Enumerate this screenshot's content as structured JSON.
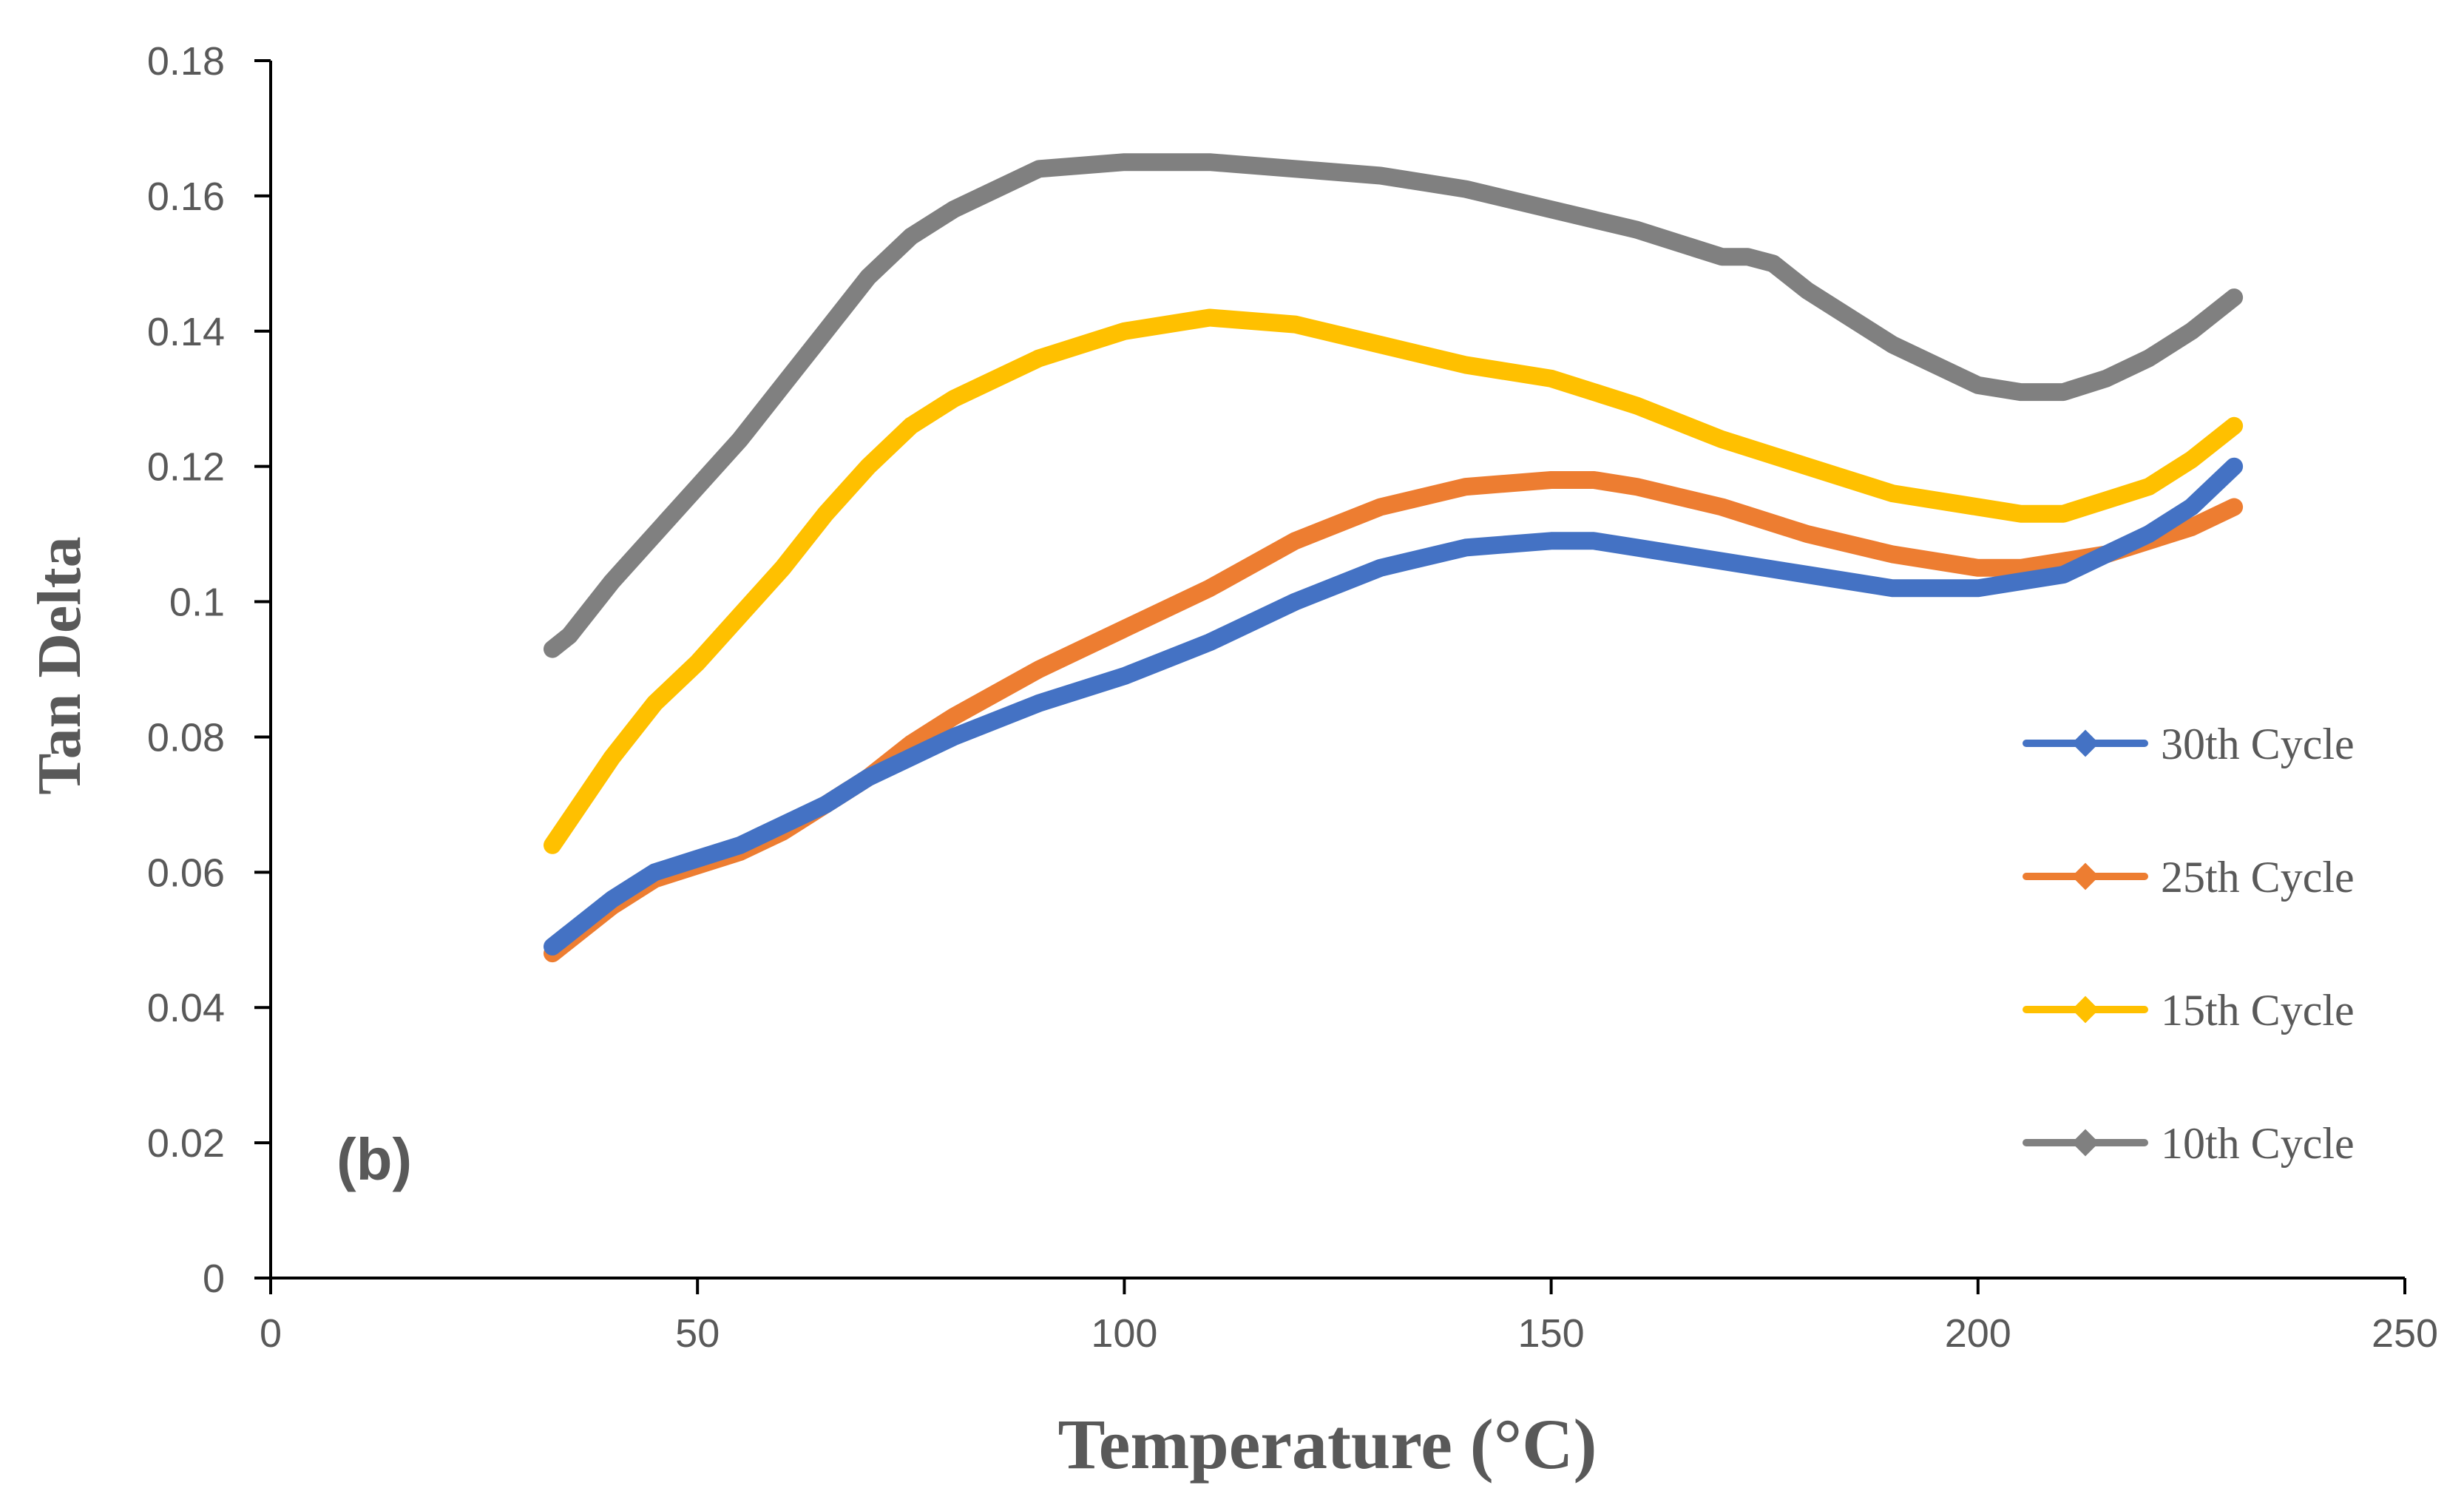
{
  "chart_data": {
    "type": "line",
    "title": "",
    "panel_label": "(b)",
    "xlabel": "Temperature (°C)",
    "ylabel": "Tan Delta",
    "xlim": [
      0,
      250
    ],
    "ylim": [
      0,
      0.18
    ],
    "x_ticks": [
      "0",
      "50",
      "100",
      "150",
      "200",
      "250"
    ],
    "y_ticks": [
      "0",
      "0.02",
      "0.04",
      "0.06",
      "0.08",
      "0.1",
      "0.12",
      "0.14",
      "0.16",
      "0.18"
    ],
    "grid": false,
    "legend_position": "right",
    "series": [
      {
        "name": "30th Cycle",
        "color": "#4472C4",
        "x": [
          33,
          40,
          45,
          50,
          55,
          60,
          65,
          70,
          75,
          80,
          90,
          100,
          110,
          120,
          130,
          140,
          150,
          155,
          160,
          170,
          180,
          190,
          195,
          200,
          205,
          210,
          215,
          220,
          225,
          230
        ],
        "y": [
          0.049,
          0.056,
          0.06,
          0.062,
          0.064,
          0.067,
          0.07,
          0.074,
          0.077,
          0.08,
          0.085,
          0.089,
          0.094,
          0.1,
          0.105,
          0.108,
          0.109,
          0.109,
          0.108,
          0.106,
          0.104,
          0.102,
          0.102,
          0.102,
          0.103,
          0.104,
          0.107,
          0.11,
          0.114,
          0.12
        ]
      },
      {
        "name": "25th Cycle",
        "color": "#ED7D31",
        "x": [
          33,
          40,
          45,
          50,
          55,
          60,
          65,
          70,
          75,
          80,
          90,
          100,
          110,
          120,
          130,
          140,
          150,
          155,
          160,
          170,
          180,
          190,
          200,
          205,
          210,
          215,
          220,
          225,
          230
        ],
        "y": [
          0.048,
          0.055,
          0.059,
          0.061,
          0.063,
          0.066,
          0.07,
          0.074,
          0.079,
          0.083,
          0.09,
          0.096,
          0.102,
          0.109,
          0.114,
          0.117,
          0.118,
          0.118,
          0.117,
          0.114,
          0.11,
          0.107,
          0.105,
          0.105,
          0.106,
          0.107,
          0.109,
          0.111,
          0.114
        ]
      },
      {
        "name": "15th Cycle",
        "color": "#FFC000",
        "x": [
          33,
          40,
          45,
          50,
          55,
          60,
          65,
          70,
          75,
          80,
          90,
          100,
          110,
          120,
          130,
          140,
          150,
          160,
          170,
          180,
          190,
          200,
          205,
          210,
          215,
          220,
          225,
          230
        ],
        "y": [
          0.064,
          0.077,
          0.085,
          0.091,
          0.098,
          0.105,
          0.113,
          0.12,
          0.126,
          0.13,
          0.136,
          0.14,
          0.142,
          0.141,
          0.138,
          0.135,
          0.133,
          0.129,
          0.124,
          0.12,
          0.116,
          0.114,
          0.113,
          0.113,
          0.115,
          0.117,
          0.121,
          0.126
        ]
      },
      {
        "name": "10th Cycle",
        "color": "#808080",
        "x": [
          33,
          35,
          40,
          45,
          50,
          55,
          60,
          65,
          70,
          75,
          80,
          90,
          100,
          110,
          120,
          130,
          140,
          150,
          160,
          170,
          173,
          176,
          180,
          190,
          200,
          205,
          210,
          215,
          220,
          225,
          230
        ],
        "y": [
          0.093,
          0.095,
          0.103,
          0.11,
          0.117,
          0.124,
          0.132,
          0.14,
          0.148,
          0.154,
          0.158,
          0.164,
          0.165,
          0.165,
          0.164,
          0.163,
          0.161,
          0.158,
          0.155,
          0.151,
          0.151,
          0.15,
          0.146,
          0.138,
          0.132,
          0.131,
          0.131,
          0.133,
          0.136,
          0.14,
          0.145
        ]
      }
    ]
  }
}
